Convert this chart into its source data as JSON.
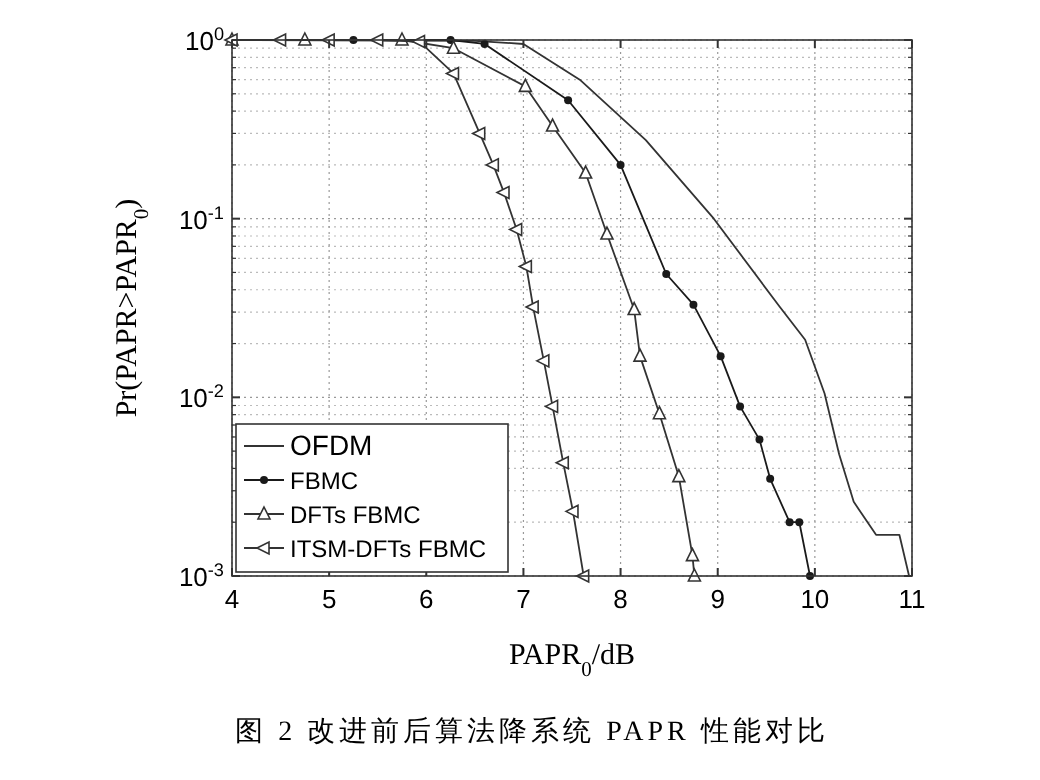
{
  "chart_data": {
    "type": "line",
    "xlabel": "PAPR$_{0}$/dB",
    "ylabel": "Pr(PAPR>PAPR$_{0}$)",
    "annotations": [
      "图 2  改进前后算法降系统 PAPR 性能对比"
    ],
    "log": "y",
    "grid": true,
    "legend": "bottom left",
    "xlim": [
      4,
      11
    ],
    "xticks": [
      4,
      5,
      6,
      7,
      8,
      9,
      10,
      11
    ],
    "ylim": [
      0.001,
      1
    ],
    "yticks": [
      {
        "value": 0.001,
        "label": "10$^{-3}$"
      },
      {
        "value": 0.01,
        "label": "10$^{-2}$"
      },
      {
        "value": 0.1,
        "label": "10$^{-1}$"
      },
      {
        "value": 1,
        "label": "10$^{0}$"
      }
    ],
    "series": [
      {
        "name": "OFDM",
        "color": "#333333",
        "marker": "none",
        "x": [
          4,
          6.5,
          7,
          7.58,
          8.26,
          8.96,
          9.64,
          9.9,
          10.1,
          10.25,
          10.4,
          10.63,
          10.87,
          10.97
        ],
        "values": [
          1,
          0.99,
          0.95,
          0.6,
          0.275,
          0.1,
          0.032,
          0.021,
          0.0105,
          0.0048,
          0.0026,
          0.0017,
          0.0017,
          0.001
        ]
      },
      {
        "name": "FBMC",
        "color": "#1a1a1a",
        "marker": "circle",
        "x": [
          4,
          5.25,
          6.25,
          6.6,
          7.46,
          8.0,
          8.47,
          8.75,
          9.03,
          9.23,
          9.43,
          9.54,
          9.74,
          9.84,
          9.95
        ],
        "values": [
          1,
          1,
          1,
          0.95,
          0.46,
          0.2,
          0.049,
          0.033,
          0.017,
          0.0089,
          0.0058,
          0.0035,
          0.002,
          0.002,
          0.001
        ]
      },
      {
        "name": "DFTs FBMC",
        "color": "#333333",
        "marker": "triangle",
        "x": [
          4,
          4.75,
          5.75,
          6.28,
          7.02,
          7.3,
          7.64,
          7.86,
          8.14,
          8.2,
          8.4,
          8.6,
          8.74,
          8.76
        ],
        "values": [
          1,
          1,
          1,
          0.9,
          0.55,
          0.33,
          0.18,
          0.082,
          0.031,
          0.017,
          0.0081,
          0.0036,
          0.0013,
          0.001
        ]
      },
      {
        "name": "ITSM-DFTs FBMC",
        "color": "#333333",
        "marker": "triangle-left",
        "x": [
          4,
          4.5,
          5,
          5.5,
          5.93,
          6.28,
          6.55,
          6.69,
          6.8,
          6.93,
          7.03,
          7.1,
          7.21,
          7.3,
          7.41,
          7.51,
          7.62
        ],
        "values": [
          1,
          1,
          1,
          1,
          0.98,
          0.65,
          0.3,
          0.2,
          0.14,
          0.087,
          0.054,
          0.032,
          0.016,
          0.0089,
          0.0043,
          0.0023,
          0.001
        ]
      }
    ]
  }
}
